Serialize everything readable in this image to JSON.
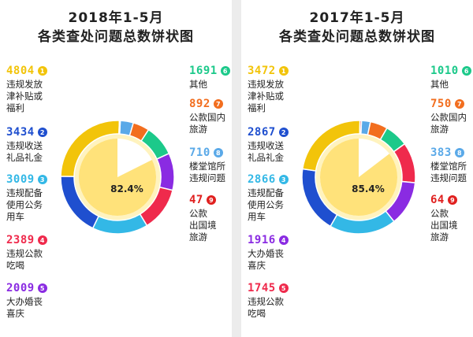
{
  "panels": [
    {
      "title_year": "2018年1-5月",
      "title_main": "各类查处问题总数饼状图",
      "center_label": "82.4%",
      "items": [
        {
          "num": "1",
          "value": "4804",
          "label": "违规发放\n津补贴或\n福利",
          "color": "#f2c40a"
        },
        {
          "num": "2",
          "value": "3434",
          "label": "违规收送\n礼品礼金",
          "color": "#1f4fcf"
        },
        {
          "num": "3",
          "value": "3009",
          "label": "违规配备\n使用公务\n用车",
          "color": "#33b8e6"
        },
        {
          "num": "4",
          "value": "2389",
          "label": "违规公款\n吃喝",
          "color": "#ef2a4c"
        },
        {
          "num": "5",
          "value": "2009",
          "label": "大办婚丧\n喜庆",
          "color": "#8a2be2"
        },
        {
          "num": "6",
          "value": "1691",
          "label": "其他",
          "color": "#1cc98a"
        },
        {
          "num": "7",
          "value": "892",
          "label": "公款国内\n旅游",
          "color": "#f26e1f"
        },
        {
          "num": "8",
          "value": "710",
          "label": "楼堂馆所\n违规问题",
          "color": "#5aa9e8"
        },
        {
          "num": "9",
          "value": "47",
          "label": "公款\n出国境\n旅游",
          "color": "#e0201f"
        }
      ],
      "chart_data": {
        "type": "pie",
        "categories": [
          "违规发放津补贴或福利",
          "违规收送礼品礼金",
          "违规配备使用公务用车",
          "违规公款吃喝",
          "大办婚丧喜庆",
          "其他",
          "公款国内旅游",
          "楼堂馆所违规问题",
          "公款出国境旅游"
        ],
        "values": [
          4804,
          3434,
          3009,
          2389,
          2009,
          1691,
          892,
          710,
          47
        ],
        "annotation": "82.4%"
      }
    },
    {
      "title_year": "2017年1-5月",
      "title_main": "各类查处问题总数饼状图",
      "center_label": "85.4%",
      "items": [
        {
          "num": "1",
          "value": "3472",
          "label": "违规发放\n津补贴或\n福利",
          "color": "#f2c40a"
        },
        {
          "num": "2",
          "value": "2867",
          "label": "违规收送\n礼品礼金",
          "color": "#1f4fcf"
        },
        {
          "num": "3",
          "value": "2866",
          "label": "违规配备\n使用公务\n用车",
          "color": "#33b8e6"
        },
        {
          "num": "4",
          "value": "1916",
          "label": "大办婚丧\n喜庆",
          "color": "#8a2be2"
        },
        {
          "num": "5",
          "value": "1745",
          "label": "违规公款\n吃喝",
          "color": "#ef2a4c"
        },
        {
          "num": "6",
          "value": "1010",
          "label": "其他",
          "color": "#1cc98a"
        },
        {
          "num": "7",
          "value": "750",
          "label": "公款国内\n旅游",
          "color": "#f26e1f"
        },
        {
          "num": "8",
          "value": "383",
          "label": "楼堂馆所\n违规问题",
          "color": "#5aa9e8"
        },
        {
          "num": "9",
          "value": "64",
          "label": "公款\n出国境\n旅游",
          "color": "#e0201f"
        }
      ],
      "chart_data": {
        "type": "pie",
        "categories": [
          "违规发放津补贴或福利",
          "违规收送礼品礼金",
          "违规配备使用公务用车",
          "大办婚丧喜庆",
          "违规公款吃喝",
          "其他",
          "公款国内旅游",
          "楼堂馆所违规问题",
          "公款出国境旅游"
        ],
        "values": [
          3472,
          2867,
          2866,
          1916,
          1745,
          1010,
          750,
          383,
          64
        ],
        "annotation": "85.4%"
      }
    }
  ]
}
